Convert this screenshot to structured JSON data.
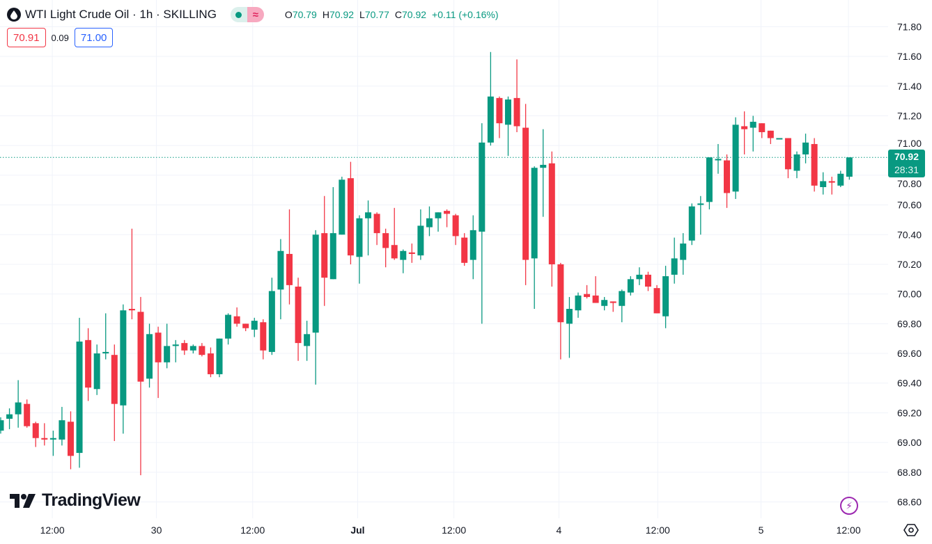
{
  "header": {
    "title": "WTI Light Crude Oil · 1h · SKILLING",
    "status_icon": "market-open-dot",
    "delay_icon": "approx-icon",
    "ohlc": [
      {
        "key": "O",
        "value": "70.79"
      },
      {
        "key": "H",
        "value": "70.92"
      },
      {
        "key": "L",
        "value": "70.77"
      },
      {
        "key": "C",
        "value": "70.92"
      }
    ],
    "change": "+0.11 (+0.16%)"
  },
  "trade": {
    "sell": "70.91",
    "spread": "0.09",
    "buy": "71.00"
  },
  "branding": {
    "logo_text": "TradingView"
  },
  "price_tag": {
    "price": "70.92",
    "countdown": "28:31"
  },
  "colors": {
    "up": "#089981",
    "down": "#f23645",
    "grid": "#f0f3fa",
    "text": "#131722"
  },
  "chart_data": {
    "type": "candlestick",
    "title": "WTI Light Crude Oil · 1h · SKILLING",
    "interval": "1h",
    "ylim": [
      68.49,
      71.98
    ],
    "xlim": [
      -0.08,
      101.43
    ],
    "y_ticks": [
      "71.80",
      "71.60",
      "71.40",
      "71.20",
      "71.00",
      "70.80",
      "70.60",
      "70.40",
      "70.20",
      "70.00",
      "69.80",
      "69.60",
      "69.40",
      "69.20",
      "69.00",
      "68.80",
      "68.60"
    ],
    "x_ticks": [
      {
        "label": "12:00",
        "index": 5.9,
        "bold": false
      },
      {
        "label": "30",
        "index": 17.8,
        "bold": false
      },
      {
        "label": "12:00",
        "index": 28.8,
        "bold": false
      },
      {
        "label": "Jul",
        "index": 40.8,
        "bold": true
      },
      {
        "label": "12:00",
        "index": 51.8,
        "bold": false
      },
      {
        "label": "4",
        "index": 63.8,
        "bold": false
      },
      {
        "label": "12:00",
        "index": 75.1,
        "bold": false
      },
      {
        "label": "5",
        "index": 86.9,
        "bold": false
      },
      {
        "label": "12:00",
        "index": 96.9,
        "bold": false
      }
    ],
    "last_price": 70.92,
    "ohlc_columns": [
      "open",
      "high",
      "low",
      "close"
    ],
    "candles": [
      [
        69.08,
        69.17,
        69.06,
        69.15
      ],
      [
        69.16,
        69.23,
        69.09,
        69.19
      ],
      [
        69.19,
        69.42,
        69.1,
        69.27
      ],
      [
        69.26,
        69.29,
        69.1,
        69.11
      ],
      [
        69.13,
        69.14,
        68.97,
        69.03
      ],
      [
        69.03,
        69.13,
        68.98,
        69.02
      ],
      [
        69.02,
        69.08,
        68.91,
        69.03
      ],
      [
        69.02,
        69.24,
        68.98,
        69.15
      ],
      [
        69.14,
        69.21,
        68.82,
        68.91
      ],
      [
        68.93,
        69.84,
        68.83,
        69.68
      ],
      [
        69.69,
        69.77,
        69.28,
        69.37
      ],
      [
        69.36,
        69.66,
        69.32,
        69.6
      ],
      [
        69.6,
        69.87,
        69.56,
        69.61
      ],
      [
        69.59,
        69.66,
        69.01,
        69.26
      ],
      [
        69.25,
        69.93,
        69.06,
        69.89
      ],
      [
        69.9,
        70.44,
        69.83,
        69.89
      ],
      [
        69.88,
        69.98,
        68.78,
        69.41
      ],
      [
        69.43,
        69.8,
        69.37,
        69.73
      ],
      [
        69.74,
        69.78,
        69.3,
        69.54
      ],
      [
        69.54,
        69.8,
        69.5,
        69.65
      ],
      [
        69.65,
        69.69,
        69.54,
        69.66
      ],
      [
        69.67,
        69.69,
        69.59,
        69.62
      ],
      [
        69.62,
        69.66,
        69.6,
        69.65
      ],
      [
        69.65,
        69.67,
        69.58,
        69.59
      ],
      [
        69.6,
        69.64,
        69.44,
        69.46
      ],
      [
        69.46,
        69.7,
        69.44,
        69.7
      ],
      [
        69.7,
        69.87,
        69.66,
        69.86
      ],
      [
        69.85,
        69.91,
        69.78,
        69.8
      ],
      [
        69.8,
        69.8,
        69.75,
        69.77
      ],
      [
        69.76,
        69.84,
        69.71,
        69.82
      ],
      [
        69.81,
        69.83,
        69.56,
        69.62
      ],
      [
        69.61,
        70.11,
        69.59,
        70.02
      ],
      [
        70.03,
        70.37,
        69.83,
        70.29
      ],
      [
        70.27,
        70.57,
        69.93,
        70.06
      ],
      [
        70.05,
        70.11,
        69.55,
        69.67
      ],
      [
        69.65,
        69.82,
        69.55,
        69.73
      ],
      [
        69.74,
        70.43,
        69.39,
        70.4
      ],
      [
        70.41,
        70.66,
        69.92,
        70.11
      ],
      [
        70.1,
        70.72,
        70.1,
        70.41
      ],
      [
        70.4,
        70.79,
        70.4,
        70.77
      ],
      [
        70.78,
        70.89,
        70.2,
        70.26
      ],
      [
        70.25,
        70.53,
        70.07,
        70.51
      ],
      [
        70.51,
        70.63,
        70.26,
        70.55
      ],
      [
        70.54,
        70.55,
        70.33,
        70.41
      ],
      [
        70.41,
        70.44,
        70.18,
        70.31
      ],
      [
        70.33,
        70.58,
        70.23,
        70.24
      ],
      [
        70.23,
        70.3,
        70.14,
        70.29
      ],
      [
        70.28,
        70.34,
        70.21,
        70.27
      ],
      [
        70.26,
        70.57,
        70.23,
        70.46
      ],
      [
        70.45,
        70.59,
        70.39,
        70.51
      ],
      [
        70.51,
        70.55,
        70.42,
        70.55
      ],
      [
        70.56,
        70.57,
        70.45,
        70.54
      ],
      [
        70.53,
        70.54,
        70.33,
        70.39
      ],
      [
        70.38,
        70.41,
        70.19,
        70.21
      ],
      [
        70.23,
        70.53,
        70.1,
        70.43
      ],
      [
        70.42,
        71.15,
        69.8,
        71.02
      ],
      [
        71.02,
        71.63,
        71.0,
        71.33
      ],
      [
        71.32,
        71.33,
        71.05,
        71.15
      ],
      [
        71.14,
        71.33,
        70.93,
        71.31
      ],
      [
        71.32,
        71.58,
        71.09,
        71.13
      ],
      [
        71.12,
        71.28,
        70.06,
        70.23
      ],
      [
        70.24,
        70.86,
        69.9,
        70.85
      ],
      [
        70.85,
        71.11,
        70.52,
        70.87
      ],
      [
        70.88,
        70.96,
        70.05,
        70.2
      ],
      [
        70.2,
        70.21,
        69.56,
        69.81
      ],
      [
        69.8,
        69.98,
        69.57,
        69.9
      ],
      [
        69.89,
        70.01,
        69.84,
        69.99
      ],
      [
        70.0,
        70.06,
        69.97,
        69.98
      ],
      [
        69.99,
        70.12,
        69.94,
        69.94
      ],
      [
        69.92,
        69.98,
        69.89,
        69.96
      ],
      [
        69.95,
        69.95,
        69.88,
        69.94
      ],
      [
        69.92,
        70.03,
        69.81,
        70.02
      ],
      [
        70.01,
        70.12,
        69.99,
        70.1
      ],
      [
        70.1,
        70.18,
        70.06,
        70.13
      ],
      [
        70.13,
        70.15,
        70.02,
        70.05
      ],
      [
        70.04,
        70.06,
        69.87,
        69.87
      ],
      [
        69.85,
        70.19,
        69.77,
        70.12
      ],
      [
        70.13,
        70.38,
        70.07,
        70.24
      ],
      [
        70.23,
        70.41,
        70.13,
        70.34
      ],
      [
        70.36,
        70.61,
        70.33,
        70.59
      ],
      [
        70.6,
        70.66,
        70.4,
        70.61
      ],
      [
        70.62,
        70.92,
        70.57,
        70.92
      ],
      [
        70.9,
        71.01,
        70.81,
        70.91
      ],
      [
        70.9,
        70.94,
        70.58,
        70.68
      ],
      [
        70.69,
        71.19,
        70.64,
        71.14
      ],
      [
        71.13,
        71.23,
        70.94,
        71.11
      ],
      [
        71.12,
        71.2,
        70.96,
        71.16
      ],
      [
        71.15,
        71.15,
        71.05,
        71.09
      ],
      [
        71.1,
        71.1,
        71.01,
        71.05
      ],
      [
        71.05,
        71.05,
        71.05,
        71.05
      ],
      [
        71.05,
        71.05,
        70.78,
        70.84
      ],
      [
        70.83,
        70.96,
        70.78,
        70.94
      ],
      [
        70.94,
        71.08,
        70.88,
        71.02
      ],
      [
        71.01,
        71.05,
        70.69,
        70.73
      ],
      [
        70.72,
        70.82,
        70.67,
        70.76
      ],
      [
        70.76,
        70.79,
        70.67,
        70.75
      ],
      [
        70.73,
        70.83,
        70.72,
        70.81
      ],
      [
        70.79,
        70.92,
        70.77,
        70.92
      ]
    ]
  }
}
